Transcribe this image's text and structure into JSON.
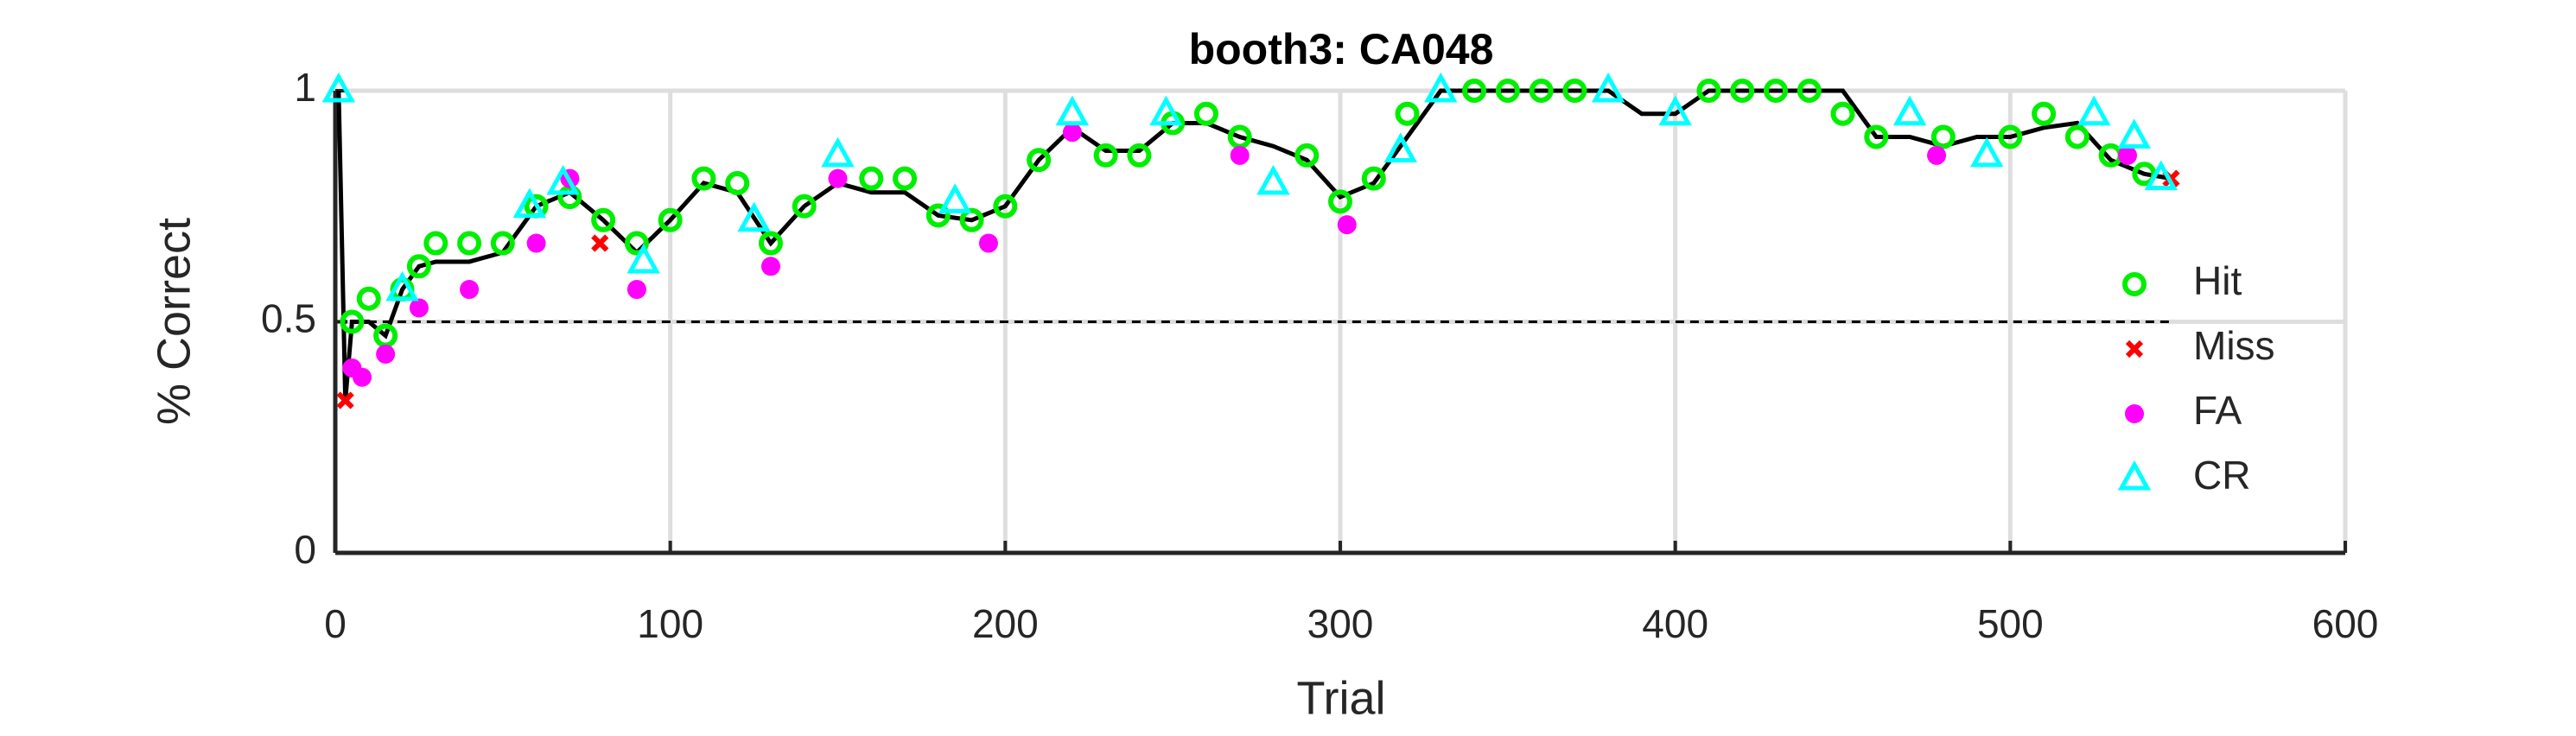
{
  "chart_data": {
    "type": "scatter",
    "title": "booth3: CA048",
    "xlabel": "Trial",
    "ylabel": "% Correct",
    "xlim": [
      0,
      600
    ],
    "xticks": [
      0,
      100,
      200,
      300,
      400,
      500,
      600
    ],
    "ylim": [
      0,
      1
    ],
    "yticks": [
      0,
      0.5,
      1
    ],
    "grid": true,
    "legend": "east",
    "reference_line": 0.5,
    "line": {
      "color": "#000000",
      "x": [
        1,
        3,
        5,
        10,
        15,
        20,
        25,
        30,
        40,
        50,
        60,
        70,
        80,
        90,
        100,
        110,
        120,
        130,
        140,
        150,
        160,
        170,
        180,
        190,
        200,
        210,
        220,
        230,
        240,
        250,
        260,
        270,
        280,
        290,
        300,
        310,
        320,
        330,
        340,
        350,
        360,
        370,
        380,
        390,
        400,
        410,
        420,
        430,
        440,
        450,
        460,
        470,
        480,
        490,
        500,
        510,
        520,
        530,
        540,
        548
      ],
      "values": [
        1,
        0.33,
        0.5,
        0.5,
        0.47,
        0.57,
        0.62,
        0.63,
        0.63,
        0.65,
        0.75,
        0.78,
        0.72,
        0.65,
        0.72,
        0.8,
        0.78,
        0.67,
        0.75,
        0.8,
        0.78,
        0.78,
        0.73,
        0.72,
        0.75,
        0.85,
        0.92,
        0.87,
        0.87,
        0.93,
        0.93,
        0.9,
        0.88,
        0.85,
        0.77,
        0.8,
        0.9,
        1,
        1,
        1,
        1,
        1,
        1,
        0.95,
        0.95,
        1,
        1,
        1,
        1,
        1,
        0.9,
        0.9,
        0.88,
        0.9,
        0.9,
        0.92,
        0.93,
        0.85,
        0.82,
        0.81
      ]
    },
    "series": [
      {
        "name": "Hit",
        "marker": "circle",
        "color": "#00ee00",
        "x": [
          5,
          10,
          15,
          20,
          25,
          30,
          40,
          50,
          60,
          70,
          80,
          90,
          100,
          110,
          120,
          130,
          140,
          160,
          170,
          180,
          190,
          200,
          210,
          230,
          240,
          250,
          260,
          270,
          290,
          300,
          310,
          320,
          340,
          350,
          360,
          370,
          410,
          420,
          430,
          440,
          450,
          460,
          480,
          500,
          510,
          520,
          530,
          540
        ],
        "values": [
          0.5,
          0.55,
          0.47,
          0.57,
          0.62,
          0.67,
          0.67,
          0.67,
          0.75,
          0.77,
          0.72,
          0.67,
          0.72,
          0.81,
          0.8,
          0.67,
          0.75,
          0.81,
          0.81,
          0.73,
          0.72,
          0.75,
          0.85,
          0.86,
          0.86,
          0.93,
          0.95,
          0.9,
          0.86,
          0.76,
          0.81,
          0.95,
          1,
          1,
          1,
          1,
          1,
          1,
          1,
          1,
          0.95,
          0.9,
          0.9,
          0.9,
          0.95,
          0.9,
          0.86,
          0.82
        ]
      },
      {
        "name": "Miss",
        "marker": "x",
        "color": "#ff0000",
        "x": [
          3,
          79,
          548
        ],
        "values": [
          0.33,
          0.67,
          0.81
        ]
      },
      {
        "name": "FA",
        "marker": "dot",
        "color": "#ff00ff",
        "x": [
          5,
          8,
          15,
          25,
          40,
          60,
          70,
          90,
          130,
          150,
          195,
          220,
          270,
          302,
          478,
          535
        ],
        "values": [
          0.4,
          0.38,
          0.43,
          0.53,
          0.57,
          0.67,
          0.81,
          0.57,
          0.62,
          0.81,
          0.67,
          0.91,
          0.86,
          0.71,
          0.86,
          0.86
        ]
      },
      {
        "name": "CR",
        "marker": "triangle",
        "color": "#00ffff",
        "x": [
          1,
          20,
          58,
          68,
          92,
          125,
          150,
          185,
          220,
          248,
          280,
          318,
          330,
          380,
          400,
          470,
          493,
          525,
          537,
          545
        ],
        "values": [
          1,
          0.57,
          0.75,
          0.8,
          0.63,
          0.72,
          0.86,
          0.76,
          0.95,
          0.95,
          0.8,
          0.87,
          1,
          1,
          0.95,
          0.95,
          0.86,
          0.95,
          0.9,
          0.81
        ]
      }
    ]
  }
}
